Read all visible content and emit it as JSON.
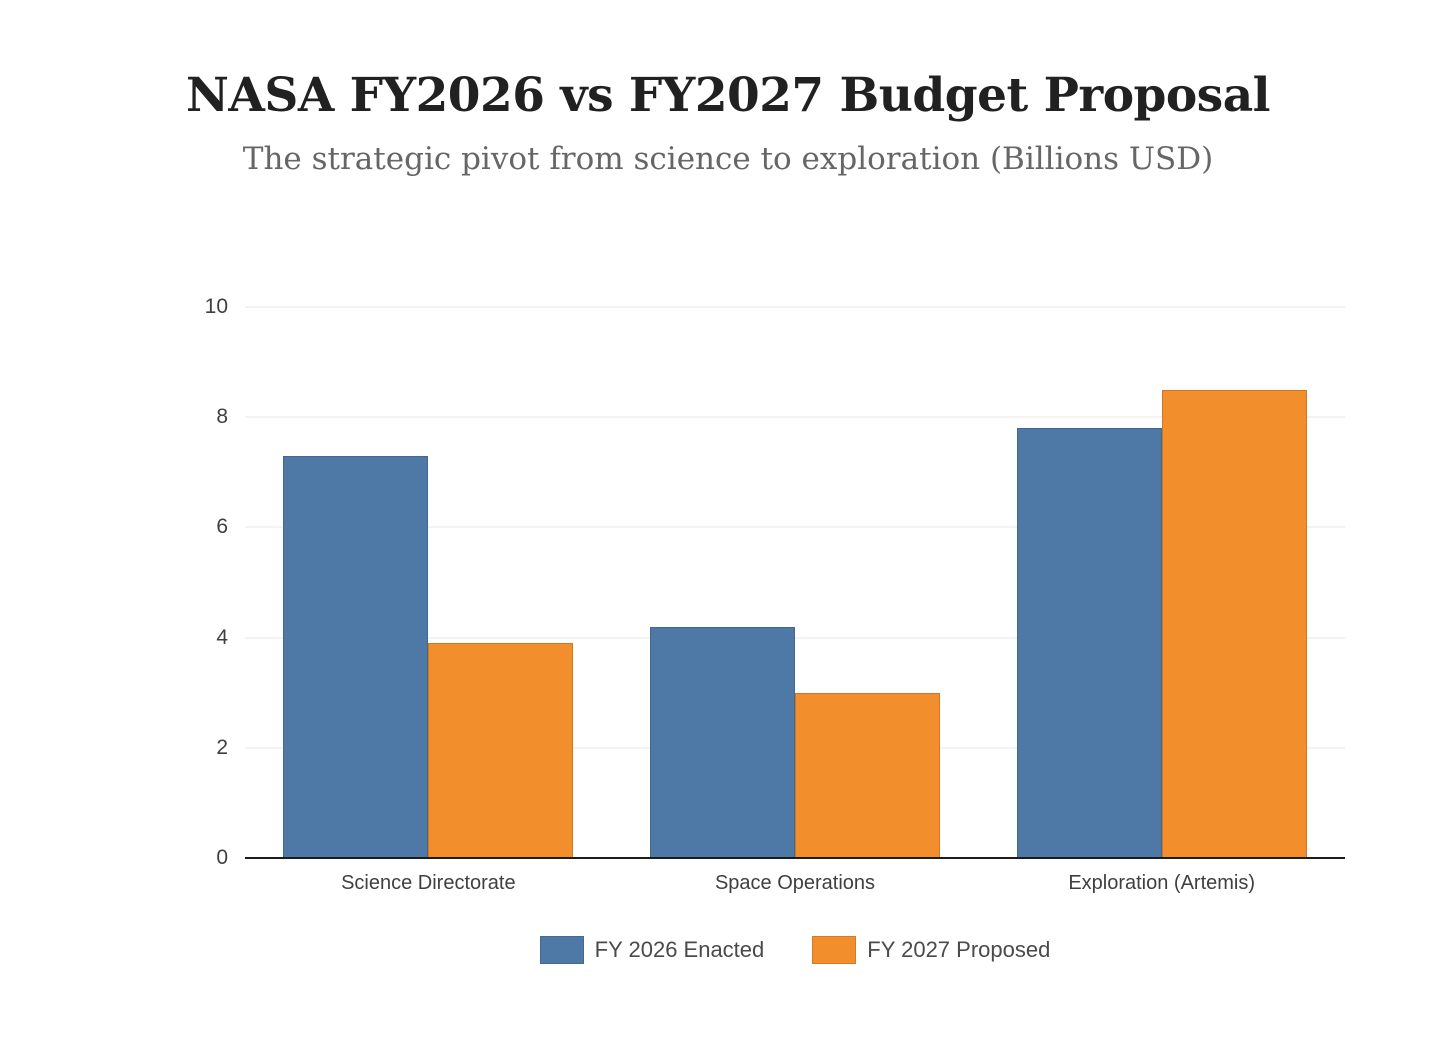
{
  "header": {
    "title": "NASA FY2026 vs FY2027 Budget Proposal",
    "subtitle": "The strategic pivot from science to exploration (Billions USD)"
  },
  "chart_data": {
    "type": "bar",
    "title": "NASA FY2026 vs FY2027 Budget Proposal",
    "subtitle": "The strategic pivot from science to exploration (Billions USD)",
    "categories": [
      "Science Directorate",
      "Space Operations",
      "Exploration (Artemis)"
    ],
    "series": [
      {
        "name": "FY 2026 Enacted",
        "color": "#4e79a7",
        "values": [
          7.3,
          4.2,
          7.8
        ]
      },
      {
        "name": "FY 2027 Proposed",
        "color": "#f28e2b",
        "values": [
          3.9,
          3.0,
          8.5
        ]
      }
    ],
    "xlabel": "",
    "ylabel": "",
    "ylim": [
      0,
      10
    ],
    "yticks": [
      0,
      2,
      4,
      6,
      8,
      10
    ],
    "grid": "horizontal",
    "legend_position": "bottom"
  },
  "colors": {
    "title": "#212121",
    "subtitle": "#666666",
    "tick_labels": "#3f3f3f",
    "legend_text": "#4a4a4a",
    "gridline": "#e7e7e7",
    "axis_line": "#1c1c1c",
    "series_blue": "#4e79a7",
    "series_orange": "#f28e2b",
    "background": "#ffffff"
  }
}
